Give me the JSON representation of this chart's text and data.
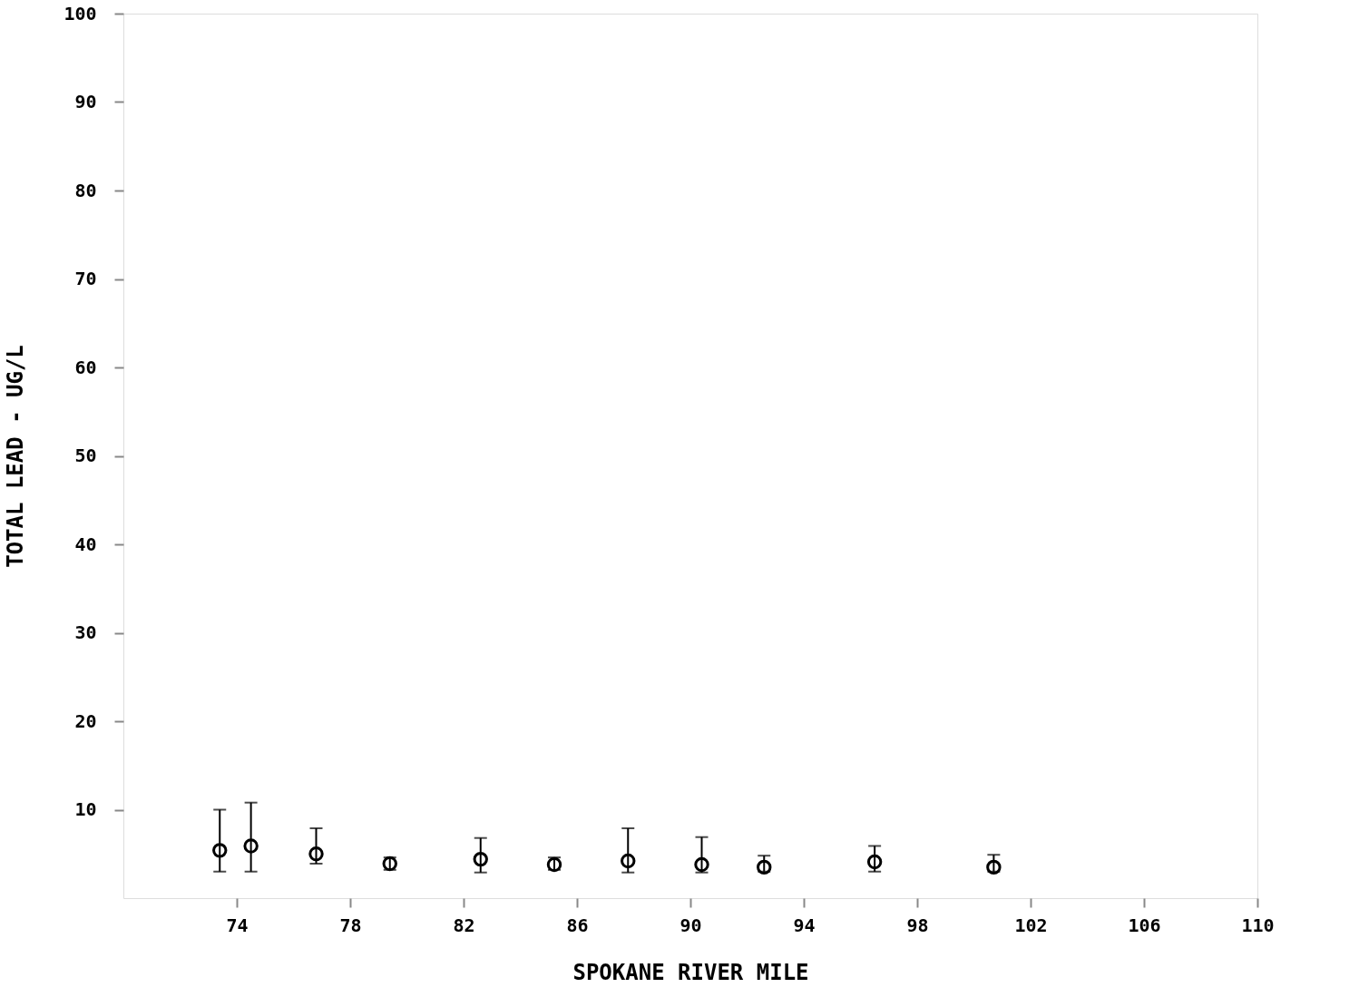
{
  "chart_data": {
    "type": "scatter",
    "xlabel": "SPOKANE RIVER MILE",
    "ylabel": "TOTAL LEAD - UG/L",
    "x": [
      73.4,
      74.5,
      76.8,
      79.4,
      82.6,
      85.2,
      87.8,
      90.4,
      92.6,
      96.5,
      100.7
    ],
    "values": [
      5.4,
      5.9,
      5.0,
      3.9,
      4.4,
      3.8,
      4.2,
      3.8,
      3.5,
      4.1,
      3.5
    ],
    "errors": [
      [
        3,
        10
      ],
      [
        3,
        10.8
      ],
      [
        3.9,
        7.9
      ],
      [
        3.2,
        4.6
      ],
      [
        2.9,
        6.8
      ],
      [
        3.2,
        4.6
      ],
      [
        2.9,
        7.9
      ],
      [
        2.9,
        6.9
      ],
      [
        3,
        4.8
      ],
      [
        3,
        5.9
      ],
      [
        3,
        4.9
      ]
    ],
    "color": "#000000",
    "marker": "circle",
    "grid": false,
    "xlim": [
      70,
      110
    ],
    "xticks": [
      74,
      78,
      82,
      86,
      90,
      94,
      98,
      102,
      106,
      110
    ],
    "ylim": [
      0,
      100
    ],
    "yticks": [
      10,
      20,
      30,
      40,
      50,
      60,
      70,
      80,
      90,
      100
    ]
  }
}
